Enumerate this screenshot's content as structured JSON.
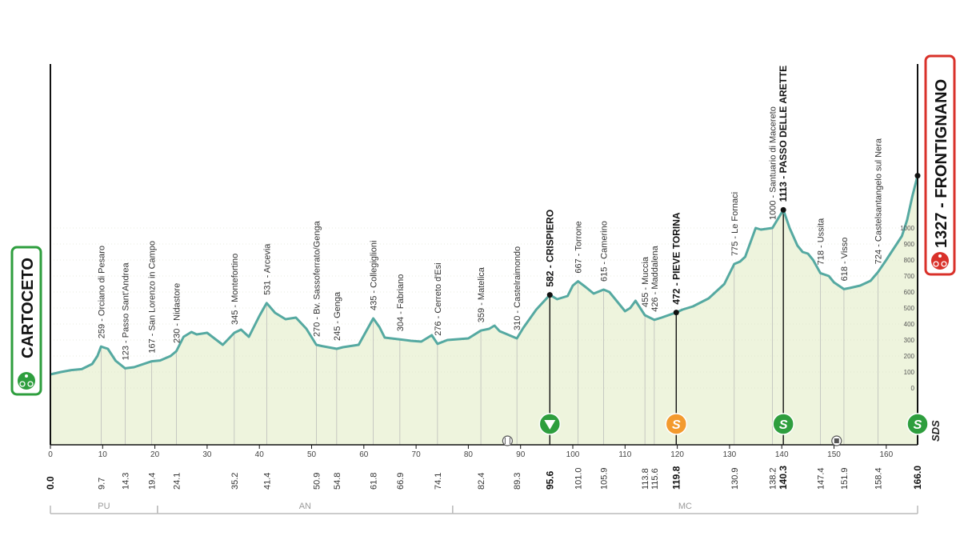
{
  "chart_data": {
    "type": "area",
    "x_unit": "km",
    "y_unit": "m",
    "xlim": [
      0,
      166
    ],
    "ylim": [
      0,
      1400
    ],
    "x_ticks": [
      0,
      10,
      20,
      30,
      40,
      50,
      60,
      70,
      80,
      90,
      100,
      110,
      120,
      130,
      140,
      150,
      160
    ],
    "alt_ticks": [
      0,
      100,
      200,
      300,
      400,
      500,
      600,
      700,
      800,
      900,
      1000
    ],
    "start": {
      "name": "CARTOCETO",
      "km": 0.0,
      "km_label": "0.0",
      "alt": 85
    },
    "finish": {
      "name": "FRONTIGNANO",
      "km": 166.0,
      "km_label": "166.0",
      "alt": 1327,
      "alt_label": "1327"
    },
    "profile": [
      [
        0,
        85
      ],
      [
        2,
        100
      ],
      [
        4,
        112
      ],
      [
        6,
        118
      ],
      [
        8,
        150
      ],
      [
        9,
        200
      ],
      [
        9.7,
        259
      ],
      [
        11,
        245
      ],
      [
        12.5,
        170
      ],
      [
        14.3,
        123
      ],
      [
        16,
        130
      ],
      [
        19.4,
        167
      ],
      [
        21,
        172
      ],
      [
        23,
        200
      ],
      [
        24.1,
        230
      ],
      [
        25.5,
        320
      ],
      [
        27,
        350
      ],
      [
        28,
        335
      ],
      [
        30,
        345
      ],
      [
        31,
        320
      ],
      [
        33,
        270
      ],
      [
        35.2,
        345
      ],
      [
        36.5,
        365
      ],
      [
        38,
        320
      ],
      [
        40,
        450
      ],
      [
        41.4,
        531
      ],
      [
        43,
        470
      ],
      [
        45,
        430
      ],
      [
        47,
        440
      ],
      [
        49,
        370
      ],
      [
        50.9,
        270
      ],
      [
        52,
        262
      ],
      [
        54.8,
        245
      ],
      [
        56,
        255
      ],
      [
        59,
        270
      ],
      [
        61.8,
        435
      ],
      [
        63,
        380
      ],
      [
        64,
        315
      ],
      [
        66.9,
        304
      ],
      [
        69,
        295
      ],
      [
        71,
        290
      ],
      [
        72,
        310
      ],
      [
        73,
        330
      ],
      [
        74.1,
        276
      ],
      [
        76,
        300
      ],
      [
        80,
        310
      ],
      [
        82.4,
        359
      ],
      [
        84,
        370
      ],
      [
        85,
        390
      ],
      [
        86,
        355
      ],
      [
        89.3,
        310
      ],
      [
        90.5,
        375
      ],
      [
        93,
        490
      ],
      [
        95.6,
        582
      ],
      [
        97,
        555
      ],
      [
        99,
        575
      ],
      [
        100,
        640
      ],
      [
        101,
        667
      ],
      [
        102.5,
        630
      ],
      [
        104,
        590
      ],
      [
        105.9,
        615
      ],
      [
        107,
        600
      ],
      [
        109,
        520
      ],
      [
        110,
        480
      ],
      [
        111,
        500
      ],
      [
        112,
        545
      ],
      [
        113.8,
        455
      ],
      [
        115.6,
        426
      ],
      [
        117,
        440
      ],
      [
        119.8,
        472
      ],
      [
        121,
        490
      ],
      [
        123,
        510
      ],
      [
        126,
        560
      ],
      [
        128,
        620
      ],
      [
        129,
        650
      ],
      [
        130.9,
        775
      ],
      [
        132,
        790
      ],
      [
        133,
        820
      ],
      [
        135,
        1000
      ],
      [
        136,
        990
      ],
      [
        138.2,
        1000
      ],
      [
        140.3,
        1113
      ],
      [
        141.5,
        1000
      ],
      [
        143,
        890
      ],
      [
        144,
        850
      ],
      [
        145,
        840
      ],
      [
        146,
        800
      ],
      [
        147.4,
        718
      ],
      [
        149,
        700
      ],
      [
        150,
        660
      ],
      [
        151.9,
        618
      ],
      [
        153,
        625
      ],
      [
        155,
        640
      ],
      [
        157,
        670
      ],
      [
        158.4,
        724
      ],
      [
        160,
        800
      ],
      [
        161,
        850
      ],
      [
        162,
        900
      ],
      [
        163,
        950
      ],
      [
        164,
        1050
      ],
      [
        165,
        1200
      ],
      [
        166,
        1327
      ]
    ],
    "waypoints": [
      {
        "km": 9.7,
        "alt": 259,
        "name": "Orciano di Pesaro",
        "label": "259 - Orciano di Pesaro",
        "km_label": "9.7"
      },
      {
        "km": 14.3,
        "alt": 123,
        "name": "Passo Sant'Andrea",
        "label": "123 - Passo Sant'Andrea",
        "km_label": "14.3"
      },
      {
        "km": 19.4,
        "alt": 167,
        "name": "San Lorenzo in Campo",
        "label": "167 - San Lorenzo in Campo",
        "km_label": "19.4"
      },
      {
        "km": 24.1,
        "alt": 230,
        "name": "Nidastore",
        "label": "230 - Nidastore",
        "km_label": "24.1"
      },
      {
        "km": 35.2,
        "alt": 345,
        "name": "Montefortino",
        "label": "345 - Montefortino",
        "km_label": "35.2"
      },
      {
        "km": 41.4,
        "alt": 531,
        "name": "Arcevia",
        "label": "531 - Arcevia",
        "km_label": "41.4"
      },
      {
        "km": 50.9,
        "alt": 270,
        "name": "Bv. Sassoferrato/Genga",
        "label": "270 - Bv. Sassoferrato/Genga",
        "km_label": "50.9"
      },
      {
        "km": 54.8,
        "alt": 245,
        "name": "Genga",
        "label": "245 - Genga",
        "km_label": "54.8"
      },
      {
        "km": 61.8,
        "alt": 435,
        "name": "Collegiglioni",
        "label": "435 - Collegiglioni",
        "km_label": "61.8"
      },
      {
        "km": 66.9,
        "alt": 304,
        "name": "Fabriano",
        "label": "304 - Fabriano",
        "km_label": "66.9"
      },
      {
        "km": 74.1,
        "alt": 276,
        "name": "Cerreto d'Esi",
        "label": "276 - Cerreto d'Esi",
        "km_label": "74.1"
      },
      {
        "km": 82.4,
        "alt": 359,
        "name": "Matelica",
        "label": "359 - Matelica",
        "km_label": "82.4"
      },
      {
        "km": 89.3,
        "alt": 310,
        "name": "Castelraimondo",
        "label": "310 - Castelraimondo",
        "km_label": "89.3"
      },
      {
        "km": 95.6,
        "alt": 582,
        "name": "CRISPIERO",
        "label": "582 - CRISPIERO",
        "km_label": "95.6",
        "bold": true,
        "kom": true
      },
      {
        "km": 101.0,
        "alt": 667,
        "name": "Torrone",
        "label": "667 - Torrone",
        "km_label": "101.0"
      },
      {
        "km": 105.9,
        "alt": 615,
        "name": "Camerino",
        "label": "615 - Camerino",
        "km_label": "105.9"
      },
      {
        "km": 113.8,
        "alt": 455,
        "name": "Muccia",
        "label": "455 - Muccia",
        "km_label": "113.8"
      },
      {
        "km": 115.6,
        "alt": 426,
        "name": "Maddalena",
        "label": "426 - Maddalena",
        "km_label": "115.6"
      },
      {
        "km": 119.8,
        "alt": 472,
        "name": "PIEVE TORINA",
        "label": "472 - PIEVE TORINA",
        "km_label": "119.8",
        "bold": true,
        "kom": true
      },
      {
        "km": 130.9,
        "alt": 775,
        "name": "Le Fornaci",
        "label": "775 - Le Fornaci",
        "km_label": "130.9"
      },
      {
        "km": 138.2,
        "alt": 1000,
        "name": "Santuario di Macereto",
        "label": "1000 - Santuario di Macereto",
        "km_label": "138.2"
      },
      {
        "km": 140.3,
        "alt": 1113,
        "name": "PASSO DELLE ARETTE",
        "label": "1113 - PASSO DELLE ARETTE",
        "km_label": "140.3",
        "bold": true,
        "kom": true
      },
      {
        "km": 147.4,
        "alt": 718,
        "name": "Ussita",
        "label": "718 - Ussita",
        "km_label": "147.4"
      },
      {
        "km": 151.9,
        "alt": 618,
        "name": "Visso",
        "label": "618 - Visso",
        "km_label": "151.9"
      },
      {
        "km": 158.4,
        "alt": 724,
        "name": "Castelsantangelo sul Nera",
        "label": "724 - Castelsantangelo sul Nera",
        "km_label": "158.4"
      }
    ],
    "markers": [
      {
        "km": 95.6,
        "type": "triangle",
        "color": "#2e9e3e"
      },
      {
        "km": 119.8,
        "type": "S",
        "letter": "S",
        "color": "#f39a2e"
      },
      {
        "km": 140.3,
        "type": "S",
        "letter": "S",
        "color": "#2e9e3e"
      },
      {
        "km": 166.0,
        "type": "S",
        "letter": "S",
        "color": "#2e9e3e"
      },
      {
        "km": 87.5,
        "type": "feed",
        "color": "#555555"
      },
      {
        "km": 150.5,
        "type": "camera",
        "color": "#555555"
      }
    ],
    "regions": [
      {
        "name": "PU",
        "from": 0,
        "to": 20.5
      },
      {
        "name": "AN",
        "from": 20.5,
        "to": 77
      },
      {
        "name": "MC",
        "from": 77,
        "to": 166
      }
    ],
    "brand": "SDS",
    "colors": {
      "line": "#55a9a1",
      "fill": "#eef4dd",
      "start": "#2e9e3e",
      "finish": "#d9312a",
      "grid": "#b5b5b5"
    }
  }
}
